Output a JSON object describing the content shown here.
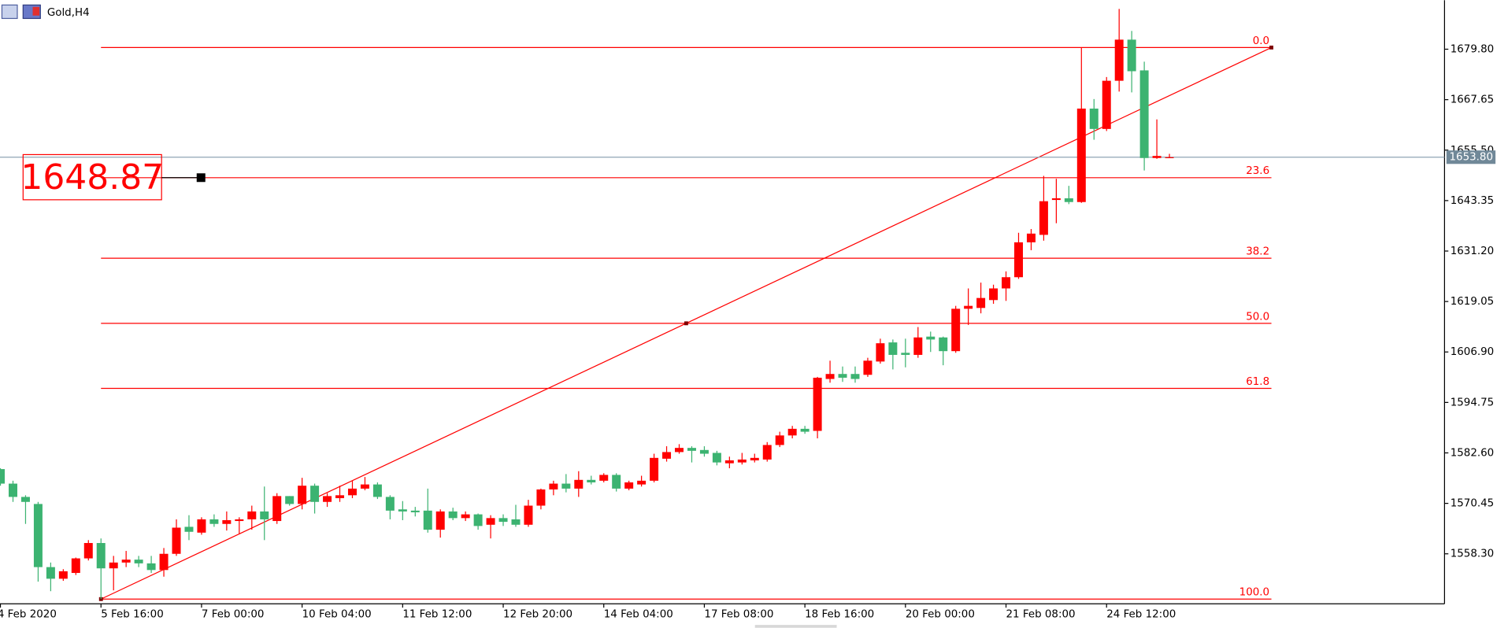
{
  "chart_data": {
    "type": "candlestick",
    "symbol": "Gold,H4",
    "categories": [
      "4 Feb 2020",
      null,
      null,
      null,
      null,
      null,
      null,
      null,
      "5 Feb 16:00",
      null,
      null,
      null,
      null,
      null,
      null,
      null,
      "7 Feb 00:00",
      null,
      null,
      null,
      null,
      null,
      null,
      null,
      "10 Feb 04:00",
      null,
      null,
      null,
      null,
      null,
      null,
      null,
      "11 Feb 12:00",
      null,
      null,
      null,
      null,
      null,
      null,
      null,
      "12 Feb 20:00",
      null,
      null,
      null,
      null,
      null,
      null,
      null,
      "14 Feb 04:00",
      null,
      null,
      null,
      null,
      null,
      null,
      null,
      "17 Feb 08:00",
      null,
      null,
      null,
      null,
      null,
      null,
      null,
      "18 Feb 16:00",
      null,
      null,
      null,
      null,
      null,
      null,
      null,
      "20 Feb 00:00",
      null,
      null,
      null,
      null,
      null,
      null,
      null,
      "21 Feb 08:00",
      null,
      null,
      null,
      null,
      null,
      null,
      null,
      "24 Feb 12:00",
      null,
      null,
      null,
      null,
      null
    ],
    "open": [
      1578.7,
      1575.2,
      1572.0,
      1570.3,
      1555.1,
      1552.3,
      1553.7,
      1557.2,
      1560.9,
      1554.8,
      1556.2,
      1556.9,
      1556.0,
      1554.4,
      1558.3,
      1564.8,
      1563.4,
      1566.6,
      1565.5,
      1566.2,
      1566.6,
      1568.5,
      1566.2,
      1572.2,
      1570.3,
      1574.7,
      1570.8,
      1571.7,
      1572.4,
      1574.0,
      1575.0,
      1572.0,
      1569.0,
      1568.7,
      1568.7,
      1564.1,
      1568.5,
      1566.9,
      1567.8,
      1565.3,
      1566.9,
      1566.6,
      1565.3,
      1569.9,
      1573.8,
      1575.2,
      1574.0,
      1576.1,
      1575.9,
      1577.3,
      1574.0,
      1575.0,
      1575.9,
      1581.2,
      1582.8,
      1583.8,
      1583.3,
      1582.6,
      1580.1,
      1580.3,
      1580.8,
      1581.0,
      1584.5,
      1586.8,
      1588.4,
      1587.9,
      1600.4,
      1601.6,
      1601.6,
      1601.4,
      1604.6,
      1609.2,
      1606.7,
      1606.2,
      1610.6,
      1610.4,
      1607.1,
      1617.3,
      1617.5,
      1619.4,
      1622.2,
      1624.9,
      1633.3,
      1635.1,
      1643.5,
      1643.9,
      1643.0,
      1665.5,
      1660.6,
      1672.2,
      1682.1,
      1674.7,
      1653.6,
      1653.6
    ],
    "high": [
      1578.9,
      1575.9,
      1572.4,
      1570.8,
      1556.2,
      1554.6,
      1557.4,
      1561.6,
      1562.0,
      1557.8,
      1559.0,
      1557.8,
      1557.8,
      1559.7,
      1566.6,
      1567.6,
      1567.1,
      1567.8,
      1568.5,
      1567.1,
      1569.9,
      1574.5,
      1572.9,
      1572.2,
      1576.6,
      1575.2,
      1572.9,
      1574.7,
      1575.9,
      1576.8,
      1575.5,
      1572.4,
      1571.0,
      1569.6,
      1574.0,
      1569.0,
      1569.4,
      1568.5,
      1568.0,
      1567.6,
      1567.8,
      1570.1,
      1571.3,
      1574.0,
      1575.9,
      1577.5,
      1578.2,
      1577.1,
      1577.7,
      1577.7,
      1575.9,
      1577.1,
      1582.4,
      1584.2,
      1584.7,
      1584.2,
      1584.2,
      1583.1,
      1581.7,
      1582.6,
      1582.4,
      1585.2,
      1587.7,
      1589.1,
      1589.1,
      1600.9,
      1604.8,
      1603.4,
      1603.4,
      1605.5,
      1610.1,
      1609.9,
      1610.1,
      1612.9,
      1611.8,
      1610.6,
      1618.0,
      1622.2,
      1623.6,
      1623.1,
      1626.3,
      1635.6,
      1636.5,
      1649.3,
      1648.6,
      1646.9,
      1680.2,
      1667.8,
      1673.1,
      1689.5,
      1684.2,
      1676.8,
      1662.9,
      1654.6
    ],
    "low": [
      1574.7,
      1570.8,
      1565.5,
      1551.6,
      1549.3,
      1551.8,
      1553.2,
      1556.7,
      1547.4,
      1549.5,
      1555.1,
      1555.1,
      1553.7,
      1552.8,
      1557.8,
      1561.6,
      1562.9,
      1564.8,
      1563.9,
      1563.2,
      1564.1,
      1561.6,
      1565.5,
      1569.9,
      1569.0,
      1568.0,
      1569.6,
      1570.8,
      1571.7,
      1573.6,
      1571.5,
      1566.6,
      1566.4,
      1567.3,
      1563.4,
      1562.2,
      1566.4,
      1566.2,
      1564.1,
      1562.0,
      1565.0,
      1564.8,
      1564.8,
      1569.0,
      1572.4,
      1573.1,
      1572.0,
      1575.0,
      1575.5,
      1573.3,
      1573.6,
      1574.5,
      1575.5,
      1580.5,
      1582.4,
      1580.3,
      1581.7,
      1579.6,
      1578.9,
      1579.8,
      1580.3,
      1580.5,
      1584.0,
      1586.1,
      1587.2,
      1586.1,
      1599.5,
      1599.7,
      1599.5,
      1600.9,
      1604.1,
      1602.7,
      1603.2,
      1605.5,
      1606.9,
      1603.7,
      1606.7,
      1613.4,
      1616.2,
      1618.5,
      1619.2,
      1624.5,
      1631.4,
      1633.7,
      1637.9,
      1642.5,
      1642.8,
      1658.0,
      1660.1,
      1669.6,
      1669.4,
      1650.6,
      1653.4,
      1653.6
    ],
    "close": [
      1575.2,
      1572.0,
      1570.8,
      1555.1,
      1552.3,
      1554.1,
      1557.2,
      1560.9,
      1554.8,
      1556.2,
      1556.9,
      1556.0,
      1554.4,
      1558.3,
      1564.6,
      1563.6,
      1566.6,
      1565.5,
      1566.4,
      1566.6,
      1568.5,
      1566.6,
      1572.2,
      1570.3,
      1574.7,
      1570.8,
      1572.2,
      1572.4,
      1574.0,
      1575.0,
      1572.0,
      1568.7,
      1568.5,
      1568.3,
      1564.1,
      1568.5,
      1566.9,
      1567.8,
      1565.0,
      1566.9,
      1566.0,
      1565.3,
      1569.9,
      1573.8,
      1575.2,
      1574.0,
      1576.1,
      1575.5,
      1577.3,
      1574.0,
      1575.5,
      1575.9,
      1581.4,
      1582.8,
      1583.8,
      1583.1,
      1582.4,
      1580.3,
      1580.8,
      1581.0,
      1581.4,
      1584.5,
      1586.8,
      1588.4,
      1587.7,
      1600.7,
      1601.6,
      1600.7,
      1600.4,
      1604.8,
      1609.0,
      1606.2,
      1606.2,
      1610.4,
      1609.9,
      1607.1,
      1617.3,
      1618.0,
      1619.9,
      1622.2,
      1624.9,
      1633.3,
      1635.4,
      1643.2,
      1643.9,
      1643.0,
      1665.5,
      1660.6,
      1672.2,
      1682.1,
      1674.5,
      1653.6,
      1654.1,
      1653.8
    ],
    "up_color": "#ff0000",
    "down_color": "#3cb371",
    "ylim": [
      1546.27,
      1691.6
    ],
    "yticks": [
      {
        "value": 1558.3,
        "label": "1558.30"
      },
      {
        "value": 1570.45,
        "label": "1570.45"
      },
      {
        "value": 1582.6,
        "label": "1582.60"
      },
      {
        "value": 1594.75,
        "label": "1594.75"
      },
      {
        "value": 1606.9,
        "label": "1606.90"
      },
      {
        "value": 1619.05,
        "label": "1619.05"
      },
      {
        "value": 1631.2,
        "label": "1631.20"
      },
      {
        "value": 1643.35,
        "label": "1643.35"
      },
      {
        "value": 1655.5,
        "label": "1655.50"
      },
      {
        "value": 1667.65,
        "label": "1667.65"
      },
      {
        "value": 1679.8,
        "label": "1679.80"
      }
    ],
    "current_price": {
      "value": 1653.8,
      "label": "1653.80"
    },
    "fib_high": 1680.2,
    "fib_low": 1547.4,
    "fib_levels": [
      {
        "value": 0,
        "label": "0.0"
      },
      23.6,
      38.2,
      {
        "value": 50,
        "label": "50.0"
      },
      61.8,
      {
        "value": 100,
        "label": "100.0"
      }
    ],
    "fib_color": "#ff0000",
    "price_label": 1648.87
  }
}
